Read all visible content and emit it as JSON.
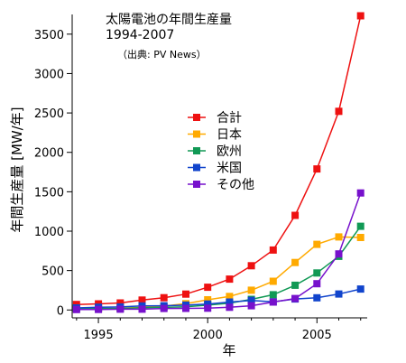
{
  "chart_data": {
    "type": "line",
    "title": "太陽電池の年間生産量",
    "subtitle": "1994-2007",
    "note": "（出典: PV News）",
    "xlabel": "年",
    "ylabel": "年間生産量 [MW/年]",
    "xlim": [
      1993.8,
      2007.3
    ],
    "ylim": [
      -100,
      3750
    ],
    "x_ticks": [
      1995,
      2000,
      2005
    ],
    "y_ticks": [
      0,
      500,
      1000,
      1500,
      2000,
      2500,
      3000,
      3500
    ],
    "legend_position": "center",
    "grid": false,
    "x": [
      1994,
      1995,
      1996,
      1997,
      1998,
      1999,
      2000,
      2001,
      2002,
      2003,
      2004,
      2005,
      2006,
      2007
    ],
    "series": [
      {
        "name": "合計",
        "color": "#ee1111",
        "values": [
          70,
          78,
          89,
          126,
          155,
          201,
          288,
          391,
          561,
          760,
          1200,
          1790,
          2520,
          3733
        ]
      },
      {
        "name": "日本",
        "color": "#ffaa00",
        "values": [
          17,
          16,
          21,
          35,
          49,
          80,
          129,
          171,
          251,
          364,
          602,
          833,
          927,
          920
        ]
      },
      {
        "name": "欧州",
        "color": "#119955",
        "values": [
          22,
          20,
          19,
          30,
          33,
          40,
          61,
          86,
          135,
          193,
          314,
          470,
          680,
          1062
        ]
      },
      {
        "name": "米国",
        "color": "#1144cc",
        "values": [
          26,
          35,
          39,
          51,
          54,
          61,
          75,
          100,
          121,
          103,
          139,
          154,
          202,
          266
        ]
      },
      {
        "name": "その他",
        "color": "#7711cc",
        "values": [
          5,
          7,
          10,
          10,
          19,
          20,
          23,
          34,
          54,
          100,
          145,
          333,
          711,
          1485
        ]
      }
    ]
  }
}
